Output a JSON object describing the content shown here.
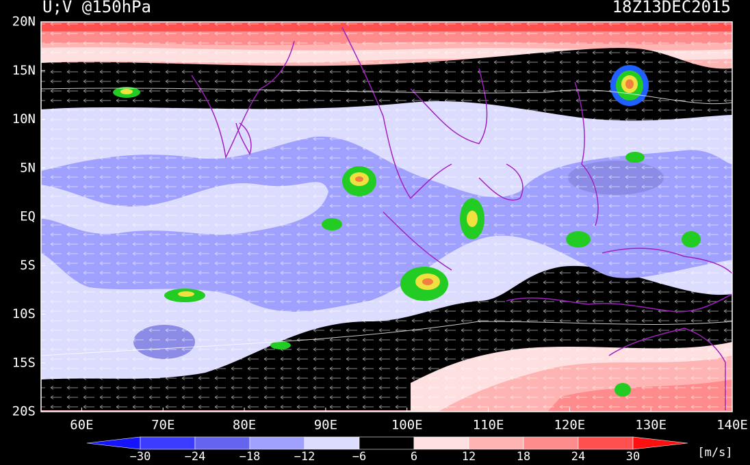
{
  "title": "U;V @150hPa",
  "time": "18Z13DEC2015",
  "lat_labels": [
    "20N",
    "15N",
    "10N",
    "5N",
    "EQ",
    "5S",
    "10S",
    "15S",
    "20S"
  ],
  "lon_labels": [
    "60E",
    "70E",
    "80E",
    "90E",
    "100E",
    "110E",
    "120E",
    "130E",
    "140E"
  ],
  "colorbar": {
    "labels": [
      "−30",
      "−24",
      "−18",
      "−12",
      "−6",
      "6",
      "12",
      "18",
      "24",
      "30"
    ],
    "colors": [
      "#1414ff",
      "#3c3cff",
      "#6464f0",
      "#a0a0ff",
      "#dcdcff",
      "#000000",
      "#ffe0e0",
      "#ffb4b4",
      "#ff8c8c",
      "#ff5050",
      "#ff1010"
    ]
  },
  "unit": "[m/s]"
}
